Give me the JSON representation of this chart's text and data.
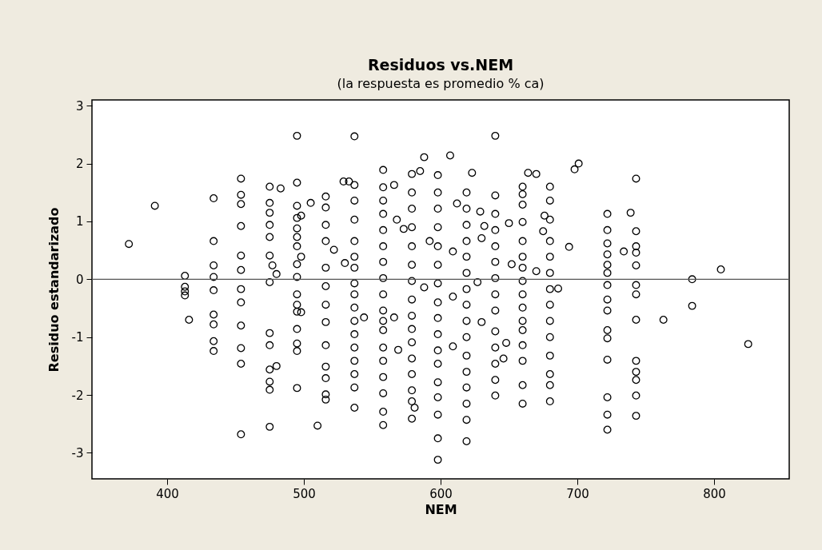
{
  "chart_data": {
    "type": "scatter",
    "title": "Residuos vs.NEM",
    "subtitle": "(la respuesta es promedio % ca)",
    "xlabel": "NEM",
    "ylabel": "Residuo estandarizado",
    "xlim": [
      345,
      855
    ],
    "xticks": [
      400,
      500,
      600,
      700,
      800
    ],
    "ylim": [
      -3.45,
      3.1
    ],
    "yticks": [
      -3,
      -2,
      -1,
      0,
      1,
      2,
      3
    ],
    "grid": false,
    "legend": false,
    "marker": "circle",
    "ref_lines": [
      {
        "axis": "y",
        "value": 0,
        "color": "#555555"
      }
    ],
    "series": [
      {
        "color": "#000000",
        "x": [
          372,
          391,
          413,
          413,
          413,
          413,
          416,
          434,
          434,
          434,
          434,
          434,
          434,
          434,
          434,
          434,
          454,
          454,
          454,
          454,
          454,
          454,
          454,
          454,
          454,
          454,
          454,
          454,
          475,
          475,
          475,
          475,
          475,
          475,
          475,
          475,
          475,
          475,
          475,
          475,
          475,
          483,
          477,
          480,
          480,
          495,
          495,
          495,
          495,
          495,
          495,
          495,
          495,
          495,
          495,
          495,
          495,
          495,
          495,
          495,
          495,
          498,
          498,
          498,
          505,
          510,
          516,
          516,
          516,
          516,
          516,
          516,
          516,
          516,
          516,
          516,
          516,
          516,
          516,
          522,
          530,
          529,
          537,
          537,
          537,
          537,
          537,
          537,
          537,
          537,
          537,
          537,
          537,
          537,
          537,
          537,
          537,
          537,
          537,
          558,
          558,
          558,
          558,
          558,
          558,
          558,
          558,
          558,
          558,
          558,
          558,
          558,
          558,
          558,
          558,
          558,
          558,
          579,
          579,
          579,
          579,
          579,
          579,
          579,
          579,
          579,
          579,
          579,
          579,
          579,
          579,
          579,
          579,
          598,
          598,
          598,
          598,
          598,
          598,
          598,
          598,
          598,
          598,
          598,
          598,
          598,
          598,
          598,
          598,
          598,
          619,
          619,
          619,
          619,
          619,
          619,
          619,
          619,
          619,
          619,
          619,
          619,
          619,
          619,
          619,
          619,
          640,
          640,
          640,
          640,
          640,
          640,
          640,
          640,
          640,
          640,
          640,
          640,
          640,
          640,
          588,
          607,
          533,
          566,
          585,
          623,
          568,
          573,
          592,
          609,
          612,
          588,
          609,
          544,
          566,
          630,
          569,
          609,
          581,
          629,
          632,
          630,
          627,
          660,
          660,
          660,
          660,
          660,
          660,
          660,
          660,
          660,
          660,
          660,
          660,
          660,
          660,
          660,
          660,
          680,
          680,
          680,
          680,
          680,
          680,
          680,
          680,
          680,
          680,
          680,
          680,
          680,
          680,
          698,
          701,
          722,
          722,
          722,
          722,
          722,
          722,
          722,
          722,
          722,
          722,
          722,
          722,
          722,
          722,
          722,
          743,
          743,
          743,
          743,
          743,
          743,
          743,
          743,
          743,
          743,
          743,
          743,
          743,
          664,
          670,
          650,
          652,
          670,
          686,
          648,
          646,
          675,
          694,
          739,
          734,
          763,
          784,
          784,
          805,
          825,
          676
        ],
        "values": [
          0.61,
          1.27,
          0.06,
          -0.13,
          -0.21,
          -0.28,
          -0.7,
          1.4,
          0.66,
          0.24,
          0.04,
          -0.19,
          -0.61,
          -0.78,
          -1.07,
          -1.24,
          1.74,
          1.46,
          1.3,
          0.92,
          0.41,
          0.16,
          -0.17,
          -0.4,
          -0.8,
          -1.19,
          -1.46,
          -2.68,
          1.6,
          1.32,
          1.15,
          0.94,
          0.73,
          0.41,
          -0.05,
          -0.93,
          -1.14,
          -1.56,
          -1.77,
          -1.91,
          -2.55,
          1.57,
          0.24,
          0.09,
          -1.5,
          2.48,
          1.67,
          1.27,
          1.06,
          0.88,
          0.73,
          0.57,
          0.26,
          0.04,
          -0.26,
          -0.44,
          -0.56,
          -0.86,
          -1.11,
          -1.24,
          -1.88,
          1.1,
          0.39,
          -0.57,
          1.32,
          -2.53,
          1.43,
          1.24,
          0.94,
          0.66,
          0.2,
          -0.12,
          -0.44,
          -0.74,
          -1.14,
          -1.51,
          -1.71,
          -1.99,
          -2.08,
          0.51,
          0.28,
          1.69,
          2.47,
          1.63,
          1.36,
          1.03,
          0.66,
          0.39,
          0.2,
          -0.07,
          -0.26,
          -0.49,
          -0.72,
          -0.95,
          -1.18,
          -1.41,
          -1.64,
          -1.87,
          -2.22,
          1.89,
          1.59,
          1.36,
          1.13,
          0.85,
          0.57,
          0.3,
          0.02,
          -0.26,
          -0.54,
          -0.72,
          -0.88,
          -1.18,
          -1.41,
          -1.69,
          -1.97,
          -2.29,
          -2.52,
          1.82,
          1.5,
          1.22,
          0.9,
          0.57,
          0.25,
          -0.03,
          -0.35,
          -0.63,
          -0.86,
          -1.09,
          -1.37,
          -1.64,
          -1.92,
          -2.11,
          -2.41,
          1.8,
          1.5,
          1.22,
          0.9,
          0.57,
          0.25,
          -0.07,
          -0.4,
          -0.67,
          -0.95,
          -1.23,
          -1.46,
          -1.78,
          -2.04,
          -2.34,
          -2.75,
          -3.12,
          1.5,
          1.22,
          0.94,
          0.66,
          0.39,
          0.11,
          -0.17,
          -0.44,
          -0.72,
          -1.0,
          -1.32,
          -1.6,
          -1.87,
          -2.15,
          -2.43,
          -2.8,
          2.48,
          1.45,
          1.13,
          0.85,
          0.57,
          0.3,
          0.02,
          -0.26,
          -0.54,
          -0.9,
          -1.18,
          -1.46,
          -1.74,
          -2.01,
          2.11,
          2.14,
          1.69,
          1.63,
          1.87,
          1.84,
          1.03,
          0.87,
          0.66,
          0.48,
          1.31,
          -0.14,
          -0.3,
          -0.66,
          -0.66,
          -0.74,
          -1.22,
          -1.16,
          -2.22,
          1.17,
          0.92,
          0.71,
          -0.05,
          1.6,
          1.47,
          1.29,
          0.99,
          0.66,
          0.39,
          0.2,
          -0.03,
          -0.26,
          -0.49,
          -0.72,
          -0.88,
          -1.14,
          -1.41,
          -1.83,
          -2.15,
          1.6,
          1.36,
          1.03,
          0.66,
          0.39,
          0.11,
          -0.17,
          -0.44,
          -0.72,
          -1.0,
          -1.32,
          -1.64,
          -1.83,
          -2.11,
          1.9,
          2.0,
          1.13,
          0.85,
          0.62,
          0.43,
          0.25,
          0.11,
          -0.1,
          -0.35,
          -0.54,
          -0.88,
          -1.02,
          -1.39,
          -2.04,
          -2.34,
          -2.6,
          1.74,
          0.83,
          0.57,
          0.46,
          0.24,
          -0.1,
          -0.26,
          -0.7,
          -1.41,
          -1.6,
          -1.74,
          -2.01,
          -2.36,
          1.84,
          1.82,
          0.97,
          0.26,
          0.14,
          -0.16,
          -1.1,
          -1.37,
          0.83,
          0.56,
          1.15,
          0.48,
          -0.7,
          0.0,
          -0.46,
          0.17,
          -1.12,
          1.1
        ]
      }
    ]
  }
}
